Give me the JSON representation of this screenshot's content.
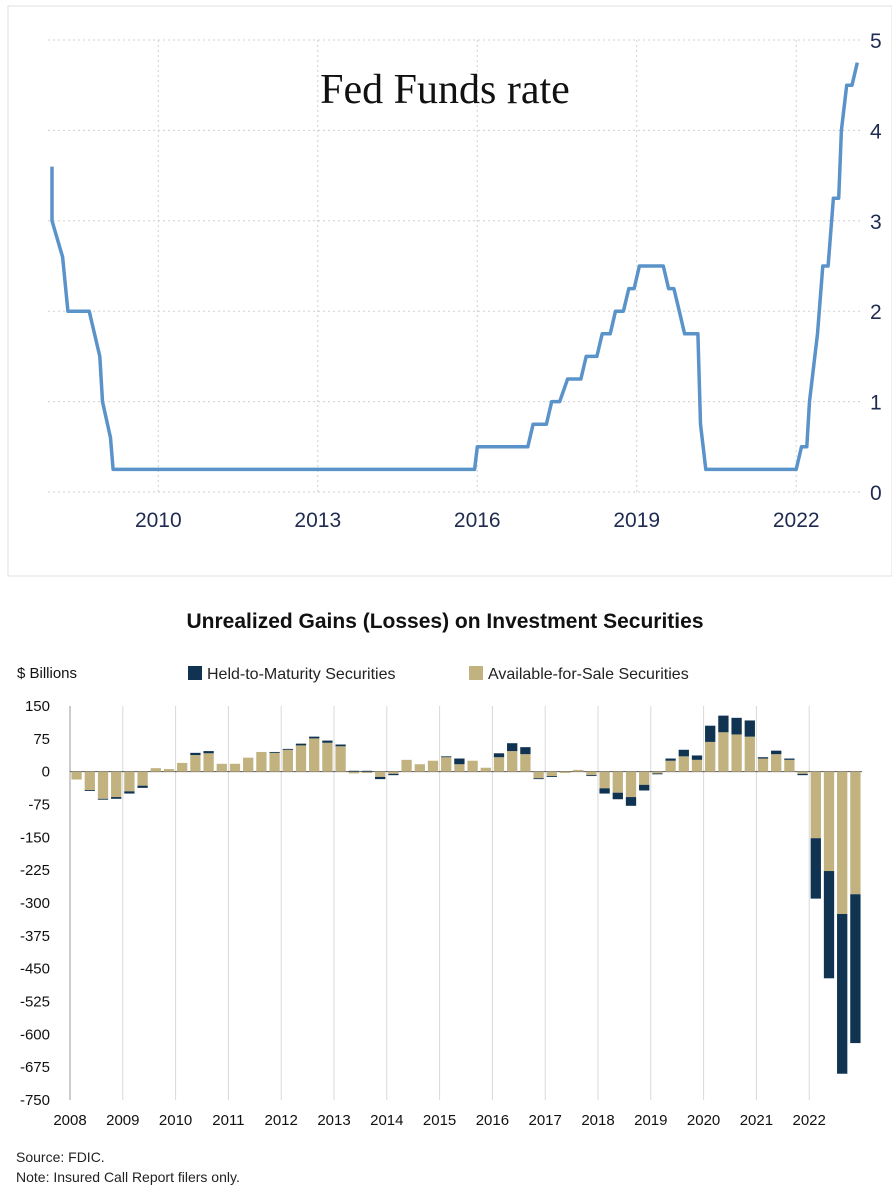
{
  "chart_data": [
    {
      "type": "line",
      "title": "Fed Funds rate",
      "xlabel": "",
      "ylabel": "",
      "x_tick_labels": [
        "2010",
        "2013",
        "2016",
        "2019",
        "2022"
      ],
      "y_tick_labels": [
        "0",
        "1",
        "2",
        "3",
        "4",
        "5"
      ],
      "xlim": [
        2008.0,
        2023.2
      ],
      "ylim": [
        0,
        5
      ],
      "y_axis_side": "right",
      "grid": true,
      "line_color": "#5a93c9",
      "series": [
        {
          "name": "Fed Funds rate",
          "points": [
            [
              2008.0,
              3.6
            ],
            [
              2008.0,
              3.0
            ],
            [
              2008.2,
              2.6
            ],
            [
              2008.3,
              2.0
            ],
            [
              2008.7,
              2.0
            ],
            [
              2008.9,
              1.5
            ],
            [
              2008.95,
              1.0
            ],
            [
              2009.1,
              0.6
            ],
            [
              2009.15,
              0.25
            ],
            [
              2015.95,
              0.25
            ],
            [
              2016.0,
              0.5
            ],
            [
              2016.95,
              0.5
            ],
            [
              2017.05,
              0.75
            ],
            [
              2017.3,
              0.75
            ],
            [
              2017.4,
              1.0
            ],
            [
              2017.55,
              1.0
            ],
            [
              2017.7,
              1.25
            ],
            [
              2017.95,
              1.25
            ],
            [
              2018.05,
              1.5
            ],
            [
              2018.25,
              1.5
            ],
            [
              2018.35,
              1.75
            ],
            [
              2018.5,
              1.75
            ],
            [
              2018.6,
              2.0
            ],
            [
              2018.75,
              2.0
            ],
            [
              2018.85,
              2.25
            ],
            [
              2018.95,
              2.25
            ],
            [
              2019.05,
              2.5
            ],
            [
              2019.5,
              2.5
            ],
            [
              2019.6,
              2.25
            ],
            [
              2019.7,
              2.25
            ],
            [
              2019.8,
              2.0
            ],
            [
              2019.9,
              1.75
            ],
            [
              2020.15,
              1.75
            ],
            [
              2020.2,
              0.75
            ],
            [
              2020.3,
              0.25
            ],
            [
              2022.0,
              0.25
            ],
            [
              2022.1,
              0.5
            ],
            [
              2022.2,
              0.5
            ],
            [
              2022.25,
              1.0
            ],
            [
              2022.4,
              1.75
            ],
            [
              2022.5,
              2.5
            ],
            [
              2022.6,
              2.5
            ],
            [
              2022.7,
              3.25
            ],
            [
              2022.8,
              3.25
            ],
            [
              2022.85,
              4.0
            ],
            [
              2022.95,
              4.5
            ],
            [
              2023.05,
              4.5
            ],
            [
              2023.15,
              4.75
            ]
          ]
        }
      ]
    },
    {
      "type": "bar",
      "stacked": true,
      "title": "Unrealized Gains (Losses) on Investment Securities",
      "ylabel": "$ Billions",
      "ylim": [
        -750,
        150
      ],
      "y_ticks": [
        150,
        75,
        0,
        -75,
        -150,
        -225,
        -300,
        -375,
        -450,
        -525,
        -600,
        -675,
        -750
      ],
      "x_tick_labels": [
        "2008",
        "2009",
        "2010",
        "2011",
        "2012",
        "2013",
        "2014",
        "2015",
        "2016",
        "2017",
        "2018",
        "2019",
        "2020",
        "2021",
        "2022"
      ],
      "categories": [
        "2008 Q1",
        "2008 Q2",
        "2008 Q3",
        "2008 Q4",
        "2009 Q1",
        "2009 Q2",
        "2009 Q3",
        "2009 Q4",
        "2010 Q1",
        "2010 Q2",
        "2010 Q3",
        "2010 Q4",
        "2011 Q1",
        "2011 Q2",
        "2011 Q3",
        "2011 Q4",
        "2012 Q1",
        "2012 Q2",
        "2012 Q3",
        "2012 Q4",
        "2013 Q1",
        "2013 Q2",
        "2013 Q3",
        "2013 Q4",
        "2014 Q1",
        "2014 Q2",
        "2014 Q3",
        "2014 Q4",
        "2015 Q1",
        "2015 Q2",
        "2015 Q3",
        "2015 Q4",
        "2016 Q1",
        "2016 Q2",
        "2016 Q3",
        "2016 Q4",
        "2017 Q1",
        "2017 Q2",
        "2017 Q3",
        "2017 Q4",
        "2018 Q1",
        "2018 Q2",
        "2018 Q3",
        "2018 Q4",
        "2019 Q1",
        "2019 Q2",
        "2019 Q3",
        "2019 Q4",
        "2020 Q1",
        "2020 Q2",
        "2020 Q3",
        "2020 Q4",
        "2021 Q1",
        "2021 Q2",
        "2021 Q3",
        "2021 Q4",
        "2022 Q1",
        "2022 Q2",
        "2022 Q3",
        "2022 Q4"
      ],
      "series": [
        {
          "name": "Available-for-Sale Securities",
          "color": "#c2b280",
          "values": [
            -18,
            -42,
            -62,
            -58,
            -45,
            -32,
            8,
            6,
            20,
            38,
            42,
            18,
            18,
            32,
            45,
            43,
            50,
            60,
            76,
            66,
            58,
            -4,
            -3,
            -12,
            -5,
            27,
            17,
            25,
            33,
            17,
            25,
            9,
            33,
            47,
            40,
            -15,
            -10,
            -3,
            4,
            -8,
            -38,
            -48,
            -58,
            -30,
            -4,
            25,
            35,
            27,
            68,
            90,
            85,
            80,
            30,
            40,
            27,
            -5,
            -152,
            -227,
            -325,
            -280
          ]
        },
        {
          "name": "Held-to-Maturity Securities",
          "color": "#0f3350",
          "values": [
            0,
            -2,
            -2,
            -4,
            -5,
            -5,
            0,
            0,
            0,
            5,
            5,
            0,
            0,
            0,
            0,
            2,
            2,
            4,
            4,
            5,
            4,
            2,
            2,
            -5,
            -3,
            0,
            0,
            0,
            2,
            13,
            0,
            0,
            9,
            18,
            16,
            -2,
            -2,
            0,
            0,
            -2,
            -12,
            -15,
            -20,
            -13,
            -2,
            5,
            15,
            10,
            37,
            38,
            38,
            37,
            3,
            8,
            3,
            -3,
            -138,
            -245,
            -365,
            -340
          ]
        }
      ],
      "legend": [
        "Held-to-Maturity Securities",
        "Available-for-Sale Securities"
      ],
      "legend_position": "top"
    }
  ],
  "notes": {
    "source": "Source: FDIC.",
    "note": "Note: Insured Call Report filers only."
  }
}
